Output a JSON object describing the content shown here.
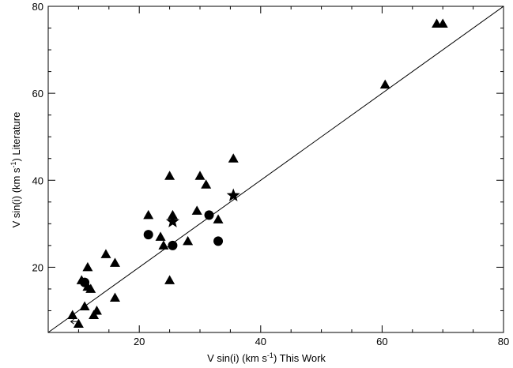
{
  "chart_data": {
    "type": "scatter",
    "title": "",
    "xlabel": {
      "pre": "V sin(i) (km s",
      "sup": "-1",
      "post": ") This Work"
    },
    "ylabel": {
      "pre": "V sin(i) (km s",
      "sup": "-1",
      "post": ") Literature"
    },
    "xlim": [
      5,
      80
    ],
    "ylim": [
      5,
      80
    ],
    "xticks": [
      20,
      40,
      60,
      80
    ],
    "yticks": [
      20,
      40,
      60,
      80
    ],
    "grid": false,
    "legend": "none",
    "reference_line": {
      "type": "identity",
      "from": [
        5,
        5
      ],
      "to": [
        80,
        80
      ]
    },
    "series": [
      {
        "marker": "triangle",
        "points": [
          [
            9.0,
            9.0
          ],
          [
            10.0,
            7.0
          ],
          [
            10.5,
            17.0
          ],
          [
            11.0,
            11.0
          ],
          [
            11.5,
            20.0
          ],
          [
            11.5,
            15.5
          ],
          [
            12.0,
            15.0
          ],
          [
            12.5,
            9.0
          ],
          [
            13.0,
            10.0
          ],
          [
            14.5,
            23.0
          ],
          [
            16.0,
            21.0
          ],
          [
            16.0,
            13.0
          ],
          [
            21.5,
            32.0
          ],
          [
            23.5,
            27.0
          ],
          [
            24.0,
            25.0
          ],
          [
            25.0,
            41.0
          ],
          [
            25.0,
            17.0
          ],
          [
            25.5,
            32.0
          ],
          [
            28.0,
            26.0
          ],
          [
            29.5,
            33.0
          ],
          [
            30.0,
            41.0
          ],
          [
            31.0,
            39.0
          ],
          [
            33.0,
            31.0
          ],
          [
            35.5,
            45.0
          ],
          [
            60.5,
            62.0
          ],
          [
            69.0,
            76.0
          ],
          [
            70.0,
            76.0
          ]
        ]
      },
      {
        "marker": "circle",
        "points": [
          [
            11.0,
            16.5
          ],
          [
            21.5,
            27.5
          ],
          [
            25.5,
            25.0
          ],
          [
            31.5,
            32.0
          ],
          [
            33.0,
            26.0
          ]
        ]
      },
      {
        "marker": "star",
        "points": [
          [
            25.5,
            30.5
          ],
          [
            35.5,
            36.5
          ]
        ]
      }
    ],
    "upper_limit_marker": {
      "x": 9.5,
      "y": 7.5,
      "direction": "left"
    }
  }
}
